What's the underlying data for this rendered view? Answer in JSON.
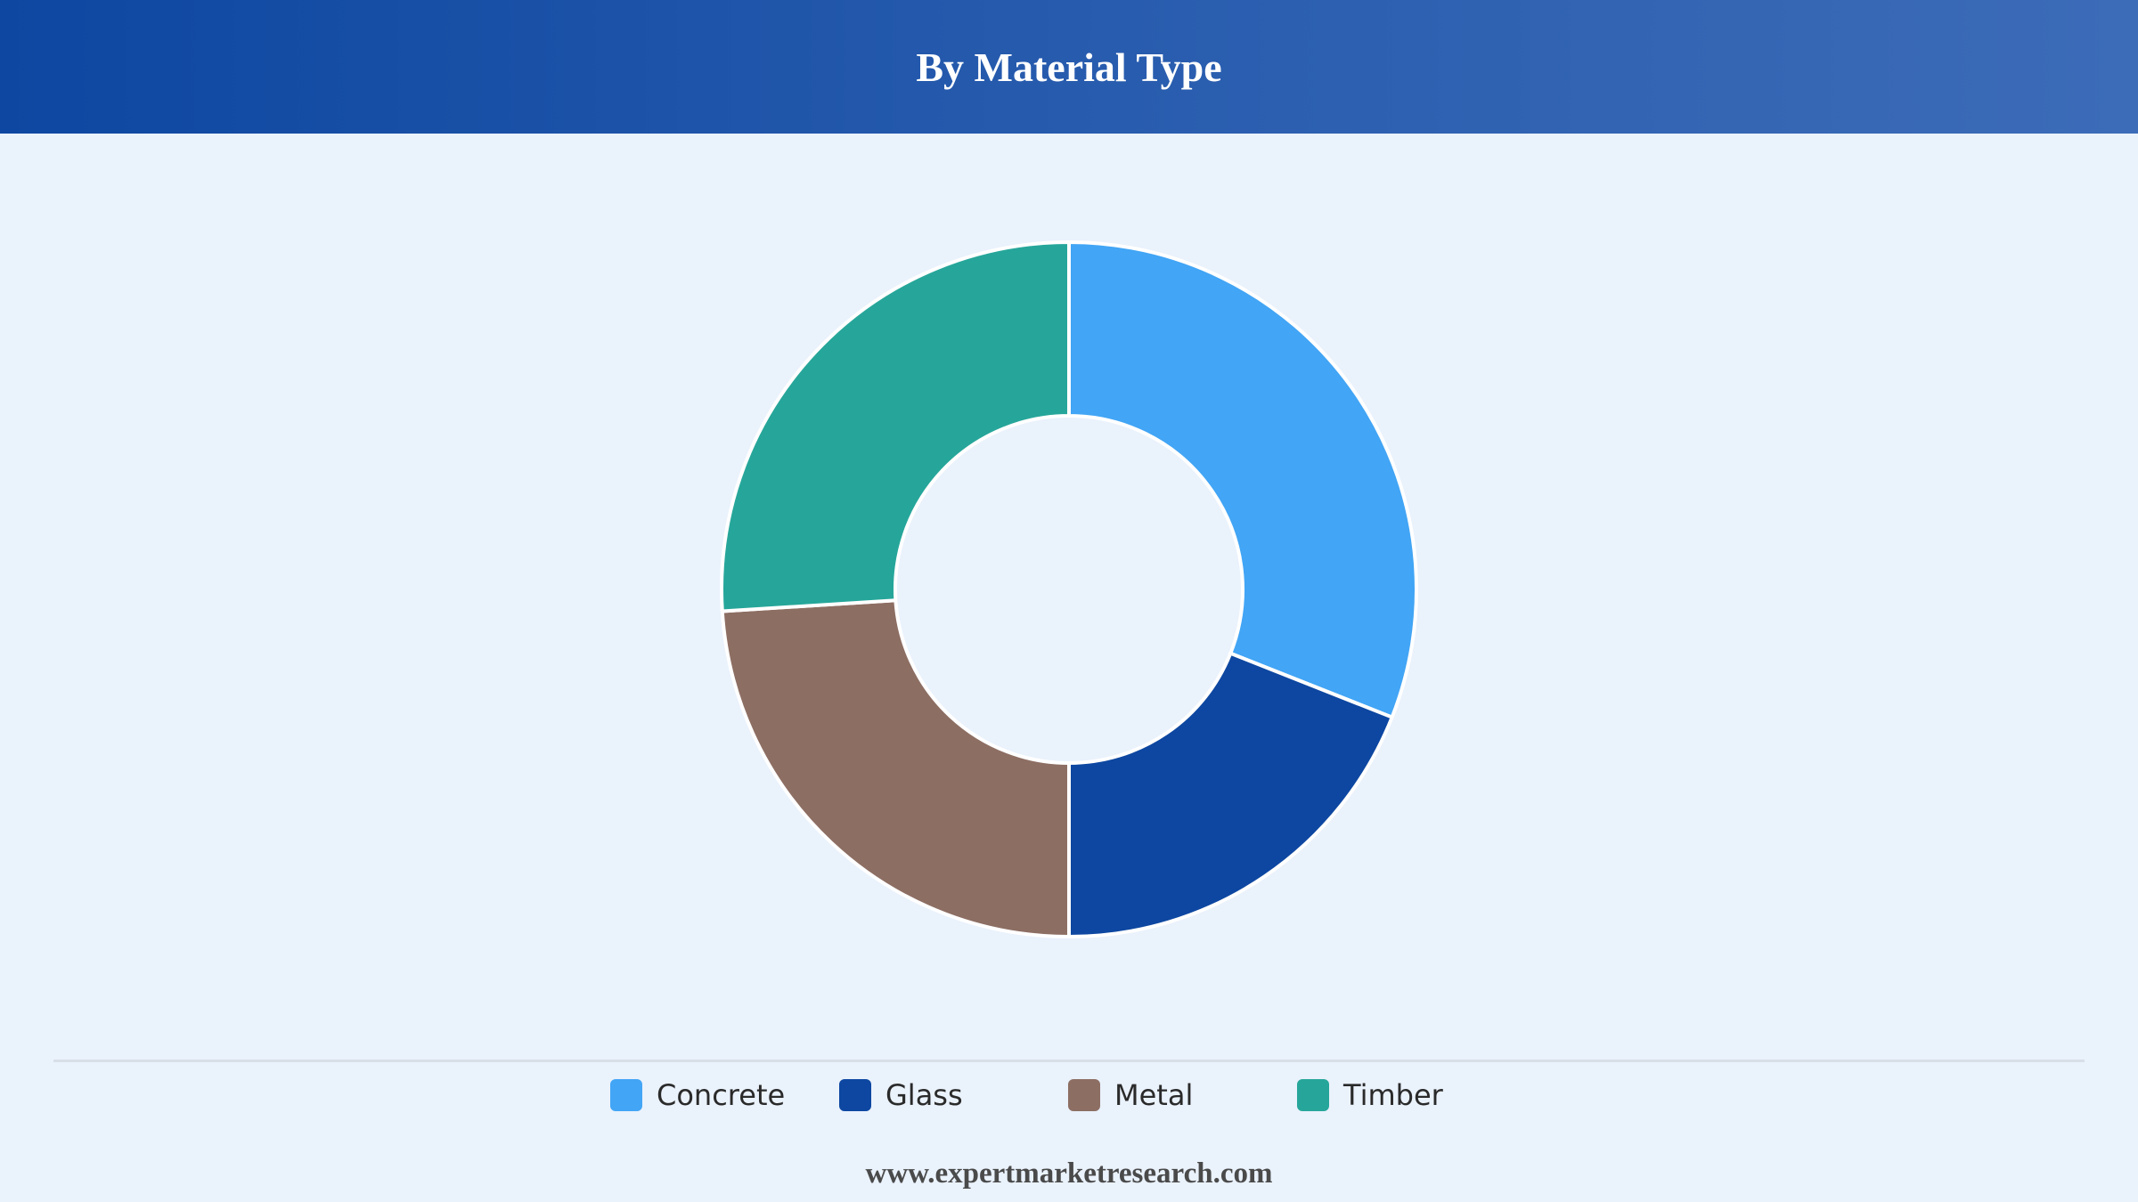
{
  "header": {
    "title": "By Material Type"
  },
  "chart_data": {
    "type": "pie",
    "donut": true,
    "title": "By Material Type",
    "categories": [
      "Concrete",
      "Glass",
      "Metal",
      "Timber"
    ],
    "values": [
      31,
      19,
      24,
      26
    ],
    "colors": [
      "#42a5f5",
      "#0d47a1",
      "#8d6e63",
      "#26a69a"
    ],
    "legend_position": "bottom"
  },
  "legend": {
    "items": [
      {
        "label": "Concrete",
        "color": "#42a5f5"
      },
      {
        "label": "Glass",
        "color": "#0d47a1"
      },
      {
        "label": "Metal",
        "color": "#8d6e63"
      },
      {
        "label": "Timber",
        "color": "#26a69a"
      }
    ]
  },
  "footer": {
    "source": "www.expertmarketresearch.com"
  }
}
